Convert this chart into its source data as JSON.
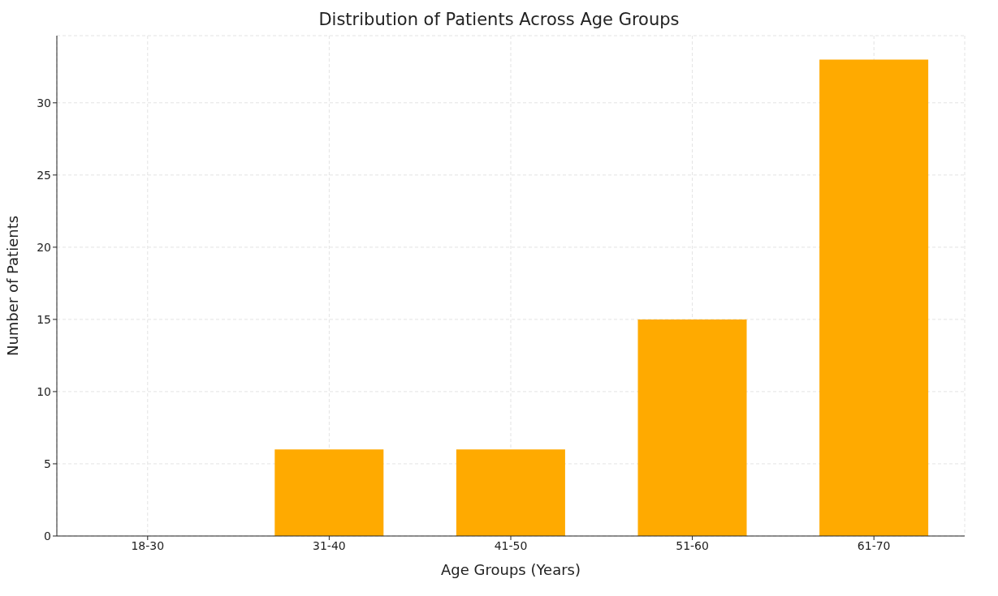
{
  "chart_data": {
    "type": "bar",
    "title": "Distribution of Patients Across Age Groups",
    "xlabel": "Age Groups (Years)",
    "ylabel": "Number of Patients",
    "categories": [
      "18-30",
      "31-40",
      "41-50",
      "51-60",
      "61-70"
    ],
    "values": [
      0,
      6,
      6,
      15,
      33
    ],
    "color": "#ffaa00",
    "ylim": [
      0,
      34.65
    ],
    "yticks": [
      0,
      5,
      10,
      15,
      20,
      25,
      30
    ],
    "grid": true
  }
}
